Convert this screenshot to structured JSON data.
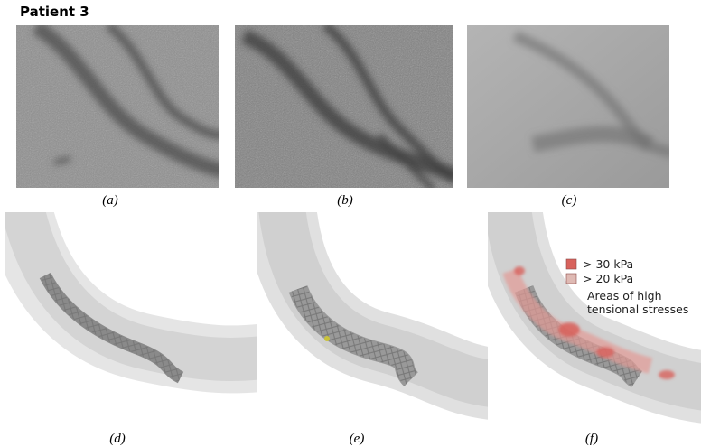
{
  "title": "Patient 3",
  "panels": [
    {
      "label": "(a)"
    },
    {
      "label": "(b)"
    },
    {
      "label": "(c)"
    },
    {
      "label": "(d)"
    },
    {
      "label": "(e)"
    },
    {
      "label": "(f)"
    }
  ],
  "legend": {
    "items": [
      {
        "label": "> 30 kPa",
        "color": "#d8625c"
      },
      {
        "label": "> 20 kPa",
        "color": "#dfbab4"
      }
    ],
    "caption_lines": [
      "Areas of high",
      "tensional stresses"
    ]
  }
}
